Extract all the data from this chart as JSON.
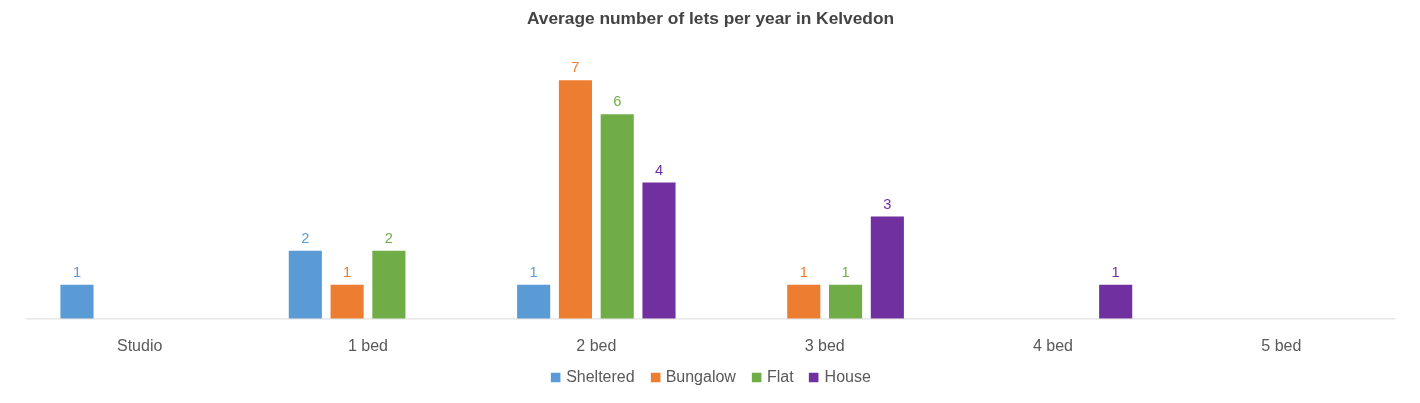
{
  "chart_data": {
    "type": "bar",
    "title": "Average number of lets per year in Kelvedon",
    "categories": [
      "Studio",
      "1 bed",
      "2 bed",
      "3 bed",
      "4 bed",
      "5 bed"
    ],
    "series": [
      {
        "name": "Sheltered",
        "color": "#5b9bd5",
        "values": [
          1,
          2,
          1,
          null,
          null,
          null
        ]
      },
      {
        "name": "Bungalow",
        "color": "#ed7d31",
        "values": [
          null,
          1,
          7,
          1,
          null,
          null
        ]
      },
      {
        "name": "Flat",
        "color": "#70ad47",
        "values": [
          null,
          2,
          6,
          1,
          null,
          null
        ]
      },
      {
        "name": "House",
        "color": "#7030a0",
        "values": [
          null,
          null,
          4,
          3,
          1,
          null
        ]
      }
    ],
    "data_labels": true,
    "legend": "bottom"
  }
}
